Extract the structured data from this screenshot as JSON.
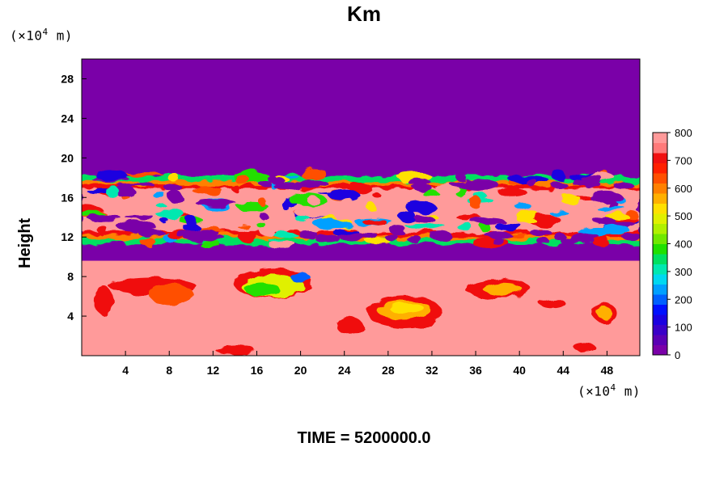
{
  "figure": {
    "title": "Km",
    "y_unit_prefix": "(×10",
    "y_unit_exp": "4",
    "y_unit_suffix": " m)",
    "x_unit_prefix": "(×10",
    "x_unit_exp": "4",
    "x_unit_suffix": " m)",
    "footer": "TIME = 5200000.0"
  },
  "chart_data": {
    "type": "heatmap",
    "title": "Km",
    "xlabel": "",
    "ylabel": "Height",
    "x_unit": "(×10^4 m)",
    "y_unit": "(×10^4 m)",
    "xlim": [
      0,
      51
    ],
    "ylim": [
      0,
      30
    ],
    "x_ticks": [
      4,
      8,
      12,
      16,
      20,
      24,
      28,
      32,
      36,
      40,
      44,
      48
    ],
    "y_ticks": [
      4,
      8,
      12,
      16,
      20,
      24,
      28
    ],
    "colorbar": {
      "min": 0,
      "max": 800,
      "ticks": [
        0,
        100,
        200,
        300,
        400,
        500,
        600,
        700,
        800
      ],
      "colors": [
        "#7a00a8",
        "#5a00b4",
        "#3a00c8",
        "#1a00e0",
        "#0010ff",
        "#0060ff",
        "#00a0ff",
        "#00d8f0",
        "#00e8b0",
        "#00e060",
        "#20e000",
        "#70e800",
        "#b0f000",
        "#e0f000",
        "#ffe000",
        "#ffb000",
        "#ff8000",
        "#ff5000",
        "#ff2000",
        "#f01010",
        "#ff7a7a",
        "#ff9a9a"
      ]
    },
    "regions": [
      {
        "name": "upper calm layer",
        "y": [
          19,
          30
        ],
        "value": 0
      },
      {
        "name": "upper turbulent band",
        "y": [
          11,
          19
        ],
        "value": "mixed 0-800"
      },
      {
        "name": "middle calm layer",
        "y": [
          9.5,
          11
        ],
        "value": 0
      },
      {
        "name": "lower turbulent layer",
        "y": [
          0,
          9.5
        ],
        "value": "mostly 800"
      }
    ]
  }
}
